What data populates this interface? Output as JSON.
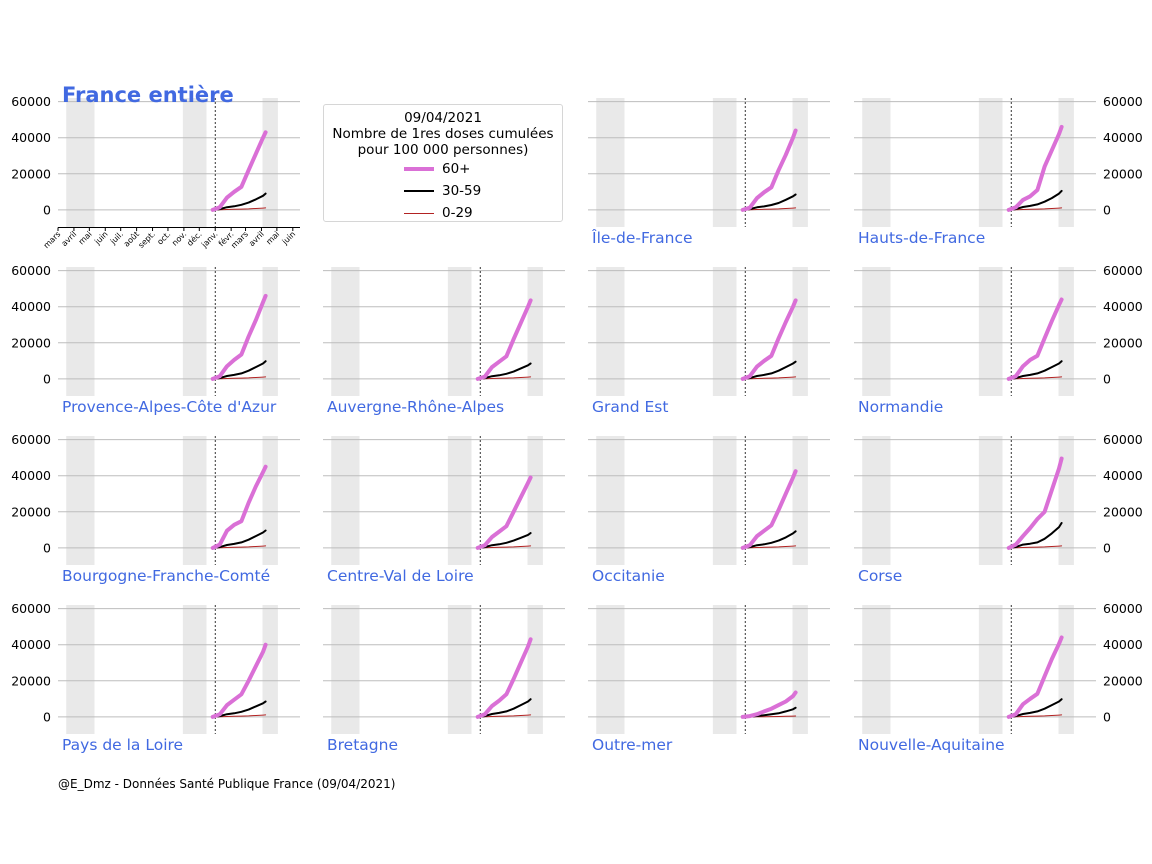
{
  "chart_data": {
    "type": "line",
    "title": "France entière",
    "title_color": "#4169e1",
    "subplot_label_color": "#4169e1",
    "legend": {
      "date": "09/04/2021",
      "title_line1": "Nombre de 1res doses cumulées",
      "title_line2": "pour 100 000 personnes)",
      "placement": "top-center",
      "entries": [
        {
          "label": "60+",
          "color": "#da70d6"
        },
        {
          "label": "30-59",
          "color": "#000000"
        },
        {
          "label": "0-29",
          "color": "#b22222"
        }
      ]
    },
    "y_ticks": [
      "60000",
      "40000",
      "20000",
      "0"
    ],
    "ylim": [
      -9500,
      62000
    ],
    "x_tick_labels": [
      "mars",
      "avril",
      "mai",
      "juin",
      "juil.",
      "août",
      "sept.",
      "oct.",
      "nov.",
      "déc.",
      "janv.",
      "févr.",
      "mars",
      "avril",
      "mai",
      "juin"
    ],
    "x_range": [
      "2020-03-01",
      "2021-06-15"
    ],
    "shaded_periods": [
      [
        "2020-03-17",
        "2020-05-11"
      ],
      [
        "2020-10-30",
        "2020-12-15"
      ],
      [
        "2021-04-03",
        "2021-05-03"
      ]
    ],
    "marker_line_date": "2021-01-01",
    "grid": "horizontal",
    "series_dates": [
      "2020-12-27",
      "2021-01-10",
      "2021-01-24",
      "2021-02-07",
      "2021-02-21",
      "2021-03-07",
      "2021-03-21",
      "2021-04-04",
      "2021-04-09"
    ],
    "panels": [
      {
        "name": "France entière",
        "60+": [
          0,
          1500,
          6800,
          10000,
          12800,
          22000,
          31000,
          40000,
          43000
        ],
        "30-59": [
          0,
          400,
          1500,
          2000,
          2800,
          4000,
          5800,
          7800,
          9000
        ],
        "0-29": [
          0,
          80,
          200,
          300,
          400,
          550,
          750,
          950,
          1100
        ]
      },
      {
        "name": "Île-de-France",
        "60+": [
          0,
          1200,
          6500,
          9800,
          12500,
          22000,
          30500,
          40000,
          44000
        ],
        "30-59": [
          0,
          400,
          1400,
          1900,
          2700,
          3800,
          5600,
          7500,
          8500
        ],
        "0-29": [
          0,
          80,
          200,
          300,
          400,
          550,
          750,
          950,
          1100
        ]
      },
      {
        "name": "Hauts-de-France",
        "60+": [
          0,
          1400,
          5500,
          7500,
          11000,
          24000,
          33000,
          42000,
          46000
        ],
        "30-59": [
          0,
          400,
          1600,
          2200,
          3000,
          4500,
          6500,
          9000,
          10500
        ],
        "0-29": [
          0,
          80,
          200,
          300,
          400,
          550,
          750,
          950,
          1100
        ]
      },
      {
        "name": "Provence-Alpes-Côte d'Azur",
        "60+": [
          0,
          1500,
          7000,
          10500,
          13500,
          23500,
          32500,
          42500,
          46000
        ],
        "30-59": [
          0,
          400,
          1600,
          2200,
          3000,
          4500,
          6500,
          8500,
          9800
        ],
        "0-29": [
          0,
          80,
          200,
          300,
          400,
          550,
          750,
          950,
          1100
        ]
      },
      {
        "name": "Auvergne-Rhône-Alpes",
        "60+": [
          0,
          1200,
          6500,
          9500,
          12500,
          22000,
          31000,
          40000,
          43500
        ],
        "30-59": [
          0,
          400,
          1500,
          2000,
          2800,
          4000,
          5800,
          7500,
          8500
        ],
        "0-29": [
          0,
          80,
          200,
          300,
          400,
          550,
          750,
          950,
          1100
        ]
      },
      {
        "name": "Grand Est",
        "60+": [
          0,
          1500,
          6800,
          10000,
          12800,
          22500,
          31500,
          40000,
          43500
        ],
        "30-59": [
          0,
          400,
          1600,
          2200,
          3000,
          4500,
          6500,
          8500,
          9500
        ],
        "0-29": [
          0,
          80,
          200,
          300,
          400,
          550,
          750,
          950,
          1100
        ]
      },
      {
        "name": "Normandie",
        "60+": [
          0,
          1500,
          7000,
          10500,
          12800,
          22500,
          32000,
          41000,
          44000
        ],
        "30-59": [
          0,
          400,
          1600,
          2200,
          3000,
          4500,
          6500,
          8500,
          9800
        ],
        "0-29": [
          0,
          80,
          200,
          300,
          400,
          550,
          750,
          950,
          1100
        ]
      },
      {
        "name": "Bourgogne-Franche-Comté",
        "60+": [
          0,
          1800,
          9500,
          12800,
          14800,
          25000,
          34000,
          42000,
          45000
        ],
        "30-59": [
          0,
          400,
          1600,
          2200,
          3000,
          4500,
          6500,
          8500,
          9600
        ],
        "0-29": [
          0,
          80,
          200,
          300,
          400,
          550,
          750,
          950,
          1100
        ]
      },
      {
        "name": "Centre-Val de Loire",
        "60+": [
          0,
          1400,
          6000,
          9000,
          12000,
          20000,
          28000,
          36000,
          39000
        ],
        "30-59": [
          0,
          400,
          1500,
          2000,
          2800,
          4000,
          5600,
          7200,
          8200
        ],
        "0-29": [
          0,
          80,
          200,
          300,
          400,
          550,
          750,
          950,
          1100
        ]
      },
      {
        "name": "Occitanie",
        "60+": [
          0,
          1400,
          6500,
          9500,
          12500,
          21000,
          30000,
          39000,
          42500
        ],
        "30-59": [
          0,
          400,
          1500,
          2000,
          2800,
          4000,
          5800,
          8000,
          9200
        ],
        "0-29": [
          0,
          80,
          200,
          300,
          400,
          550,
          750,
          950,
          1100
        ]
      },
      {
        "name": "Corse",
        "60+": [
          0,
          1800,
          6500,
          11000,
          16000,
          20000,
          32000,
          44000,
          49500
        ],
        "30-59": [
          0,
          500,
          1800,
          2300,
          3000,
          5000,
          8000,
          11500,
          13800
        ],
        "0-29": [
          0,
          80,
          200,
          300,
          400,
          550,
          750,
          950,
          1100
        ]
      },
      {
        "name": "Pays de la Loire",
        "60+": [
          0,
          1400,
          6500,
          9500,
          12500,
          20000,
          28000,
          36000,
          40000
        ],
        "30-59": [
          0,
          400,
          1500,
          2000,
          2800,
          4000,
          5800,
          7500,
          8500
        ],
        "0-29": [
          0,
          80,
          200,
          300,
          400,
          550,
          750,
          950,
          1100
        ]
      },
      {
        "name": "Bretagne",
        "60+": [
          0,
          1400,
          6000,
          9000,
          12500,
          21000,
          30000,
          39000,
          43000
        ],
        "30-59": [
          0,
          400,
          1600,
          2200,
          3000,
          4500,
          6500,
          8500,
          9800
        ],
        "0-29": [
          0,
          80,
          200,
          300,
          400,
          550,
          750,
          950,
          1100
        ]
      },
      {
        "name": "Outre-mer",
        "60+": [
          0,
          400,
          1500,
          3000,
          4500,
          6500,
          8500,
          11500,
          13500
        ],
        "30-59": [
          0,
          150,
          500,
          900,
          1400,
          2000,
          3000,
          4200,
          5000
        ],
        "0-29": [
          0,
          20,
          60,
          100,
          150,
          200,
          300,
          400,
          450
        ]
      },
      {
        "name": "Nouvelle-Aquitaine",
        "60+": [
          0,
          1500,
          7000,
          10000,
          12800,
          22500,
          32000,
          40500,
          44000
        ],
        "30-59": [
          0,
          400,
          1600,
          2200,
          3000,
          4500,
          6500,
          8500,
          9800
        ],
        "0-29": [
          0,
          80,
          200,
          300,
          400,
          550,
          750,
          950,
          1100
        ]
      }
    ]
  },
  "credit": "@E_Dmz - Données Santé Publique France (09/04/2021)"
}
